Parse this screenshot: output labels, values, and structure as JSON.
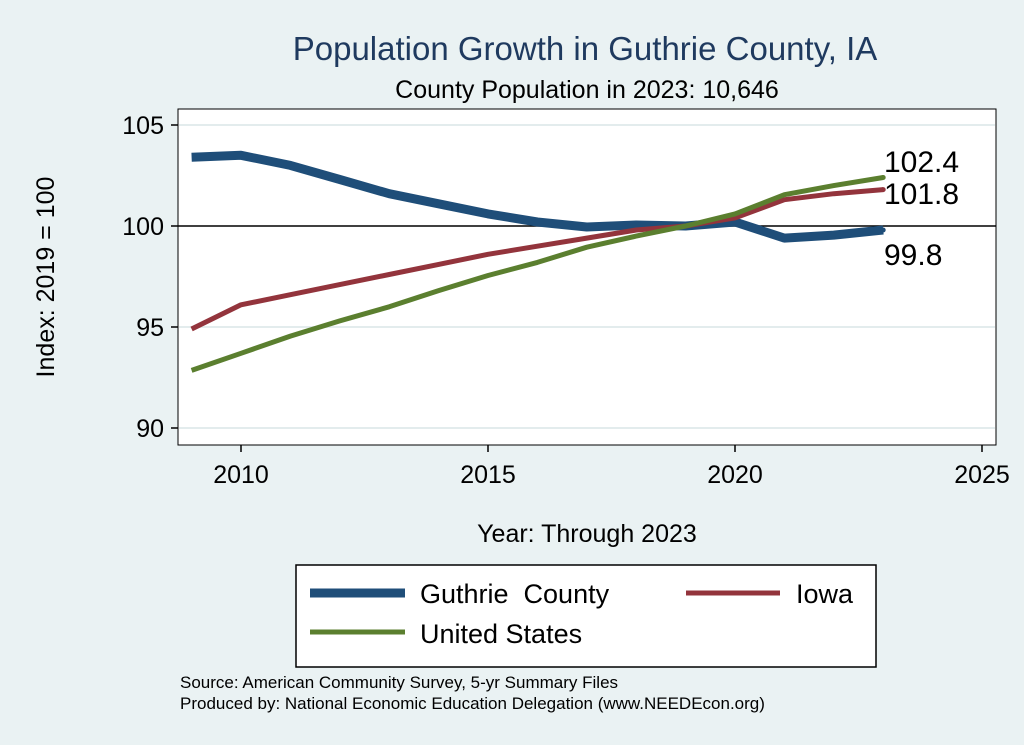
{
  "chart_data": {
    "type": "line",
    "title": "Population Growth in Guthrie County, IA",
    "subtitle": "County Population in 2023: 10,646",
    "xlabel": "Year: Through 2023",
    "ylabel": "Index: 2019 = 100",
    "xlim": [
      2009,
      2025
    ],
    "ylim": [
      90,
      105
    ],
    "xticks": [
      2010,
      2015,
      2020,
      2025
    ],
    "yticks": [
      90,
      95,
      100,
      105
    ],
    "reference_line": 100,
    "grid": true,
    "legend_position": "bottom",
    "x": [
      2009,
      2010,
      2011,
      2012,
      2013,
      2014,
      2015,
      2016,
      2017,
      2018,
      2019,
      2020,
      2021,
      2022,
      2023
    ],
    "series": [
      {
        "name": "Guthrie  County",
        "color": "#1f4e79",
        "values": [
          103.4,
          103.5,
          103.0,
          102.3,
          101.6,
          101.1,
          100.6,
          100.2,
          99.95,
          100.05,
          100.0,
          100.2,
          99.4,
          99.55,
          99.8
        ],
        "end_label": "99.8"
      },
      {
        "name": "Iowa",
        "color": "#93343c",
        "values": [
          94.9,
          96.1,
          96.6,
          97.1,
          97.6,
          98.1,
          98.6,
          99.0,
          99.4,
          99.8,
          100.0,
          100.4,
          101.3,
          101.6,
          101.8
        ],
        "end_label": "101.8"
      },
      {
        "name": "United States",
        "color": "#5b7f2f",
        "values": [
          92.85,
          93.7,
          94.55,
          95.3,
          96.0,
          96.8,
          97.55,
          98.2,
          98.95,
          99.5,
          100.0,
          100.6,
          101.55,
          102.0,
          102.4
        ],
        "end_label": "102.4"
      }
    ]
  },
  "footer": {
    "source": "Source: American Community Survey, 5-yr Summary Files",
    "produced_by": "Produced by: National Economic Education Delegation (www.NEEDEcon.org)"
  }
}
